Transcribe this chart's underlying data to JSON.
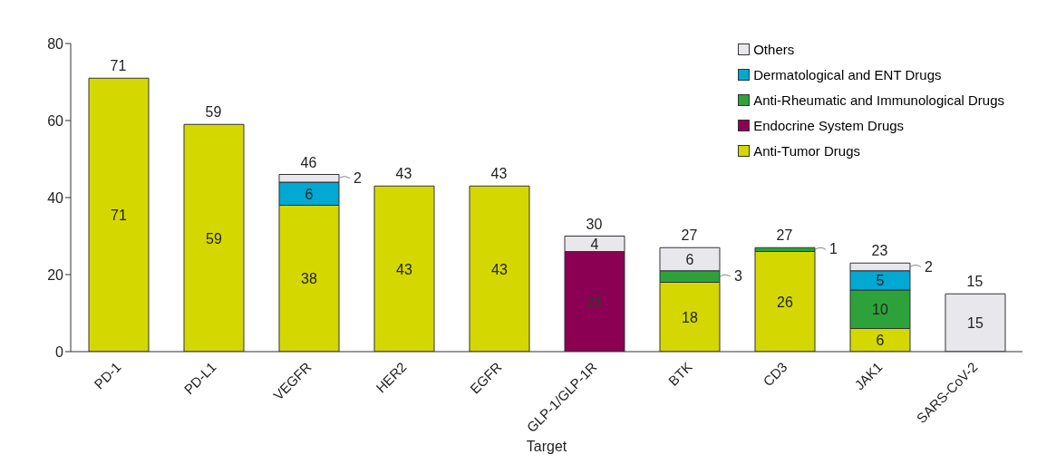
{
  "chart_data": {
    "type": "bar",
    "stacked": true,
    "xlabel": "Target",
    "categories": [
      "PD-1",
      "PD-L1",
      "VEGFR",
      "HER2",
      "EGFR",
      "GLP-1/GLP-1R",
      "BTK",
      "CD3",
      "JAK1",
      "SARS-CoV-2"
    ],
    "series": [
      {
        "name": "Anti-Tumor Drugs",
        "color": "#d4d800",
        "values": [
          71,
          59,
          38,
          43,
          43,
          null,
          18,
          26,
          6,
          null
        ]
      },
      {
        "name": "Endocrine System Drugs",
        "color": "#8b0052",
        "values": [
          null,
          null,
          null,
          null,
          null,
          26,
          null,
          null,
          null,
          null
        ]
      },
      {
        "name": "Anti-Rheumatic and Immunological Drugs",
        "color": "#2ea23a",
        "values": [
          null,
          null,
          null,
          null,
          null,
          null,
          3,
          1,
          10,
          null
        ]
      },
      {
        "name": "Dermatological and ENT Drugs",
        "color": "#00a8d2",
        "values": [
          null,
          null,
          6,
          null,
          null,
          null,
          null,
          null,
          5,
          null
        ]
      },
      {
        "name": "Others",
        "color": "#e8e8ec",
        "values": [
          null,
          null,
          2,
          null,
          null,
          4,
          6,
          null,
          2,
          15
        ]
      }
    ],
    "totals": [
      "71",
      "59",
      "46",
      "43",
      "43",
      "30",
      "27",
      "27",
      "23",
      "15"
    ],
    "data_labels": true,
    "ylim": [
      0,
      80
    ],
    "yticks": [
      0,
      20,
      40,
      60,
      80
    ],
    "grid": false,
    "legend": "top right"
  }
}
